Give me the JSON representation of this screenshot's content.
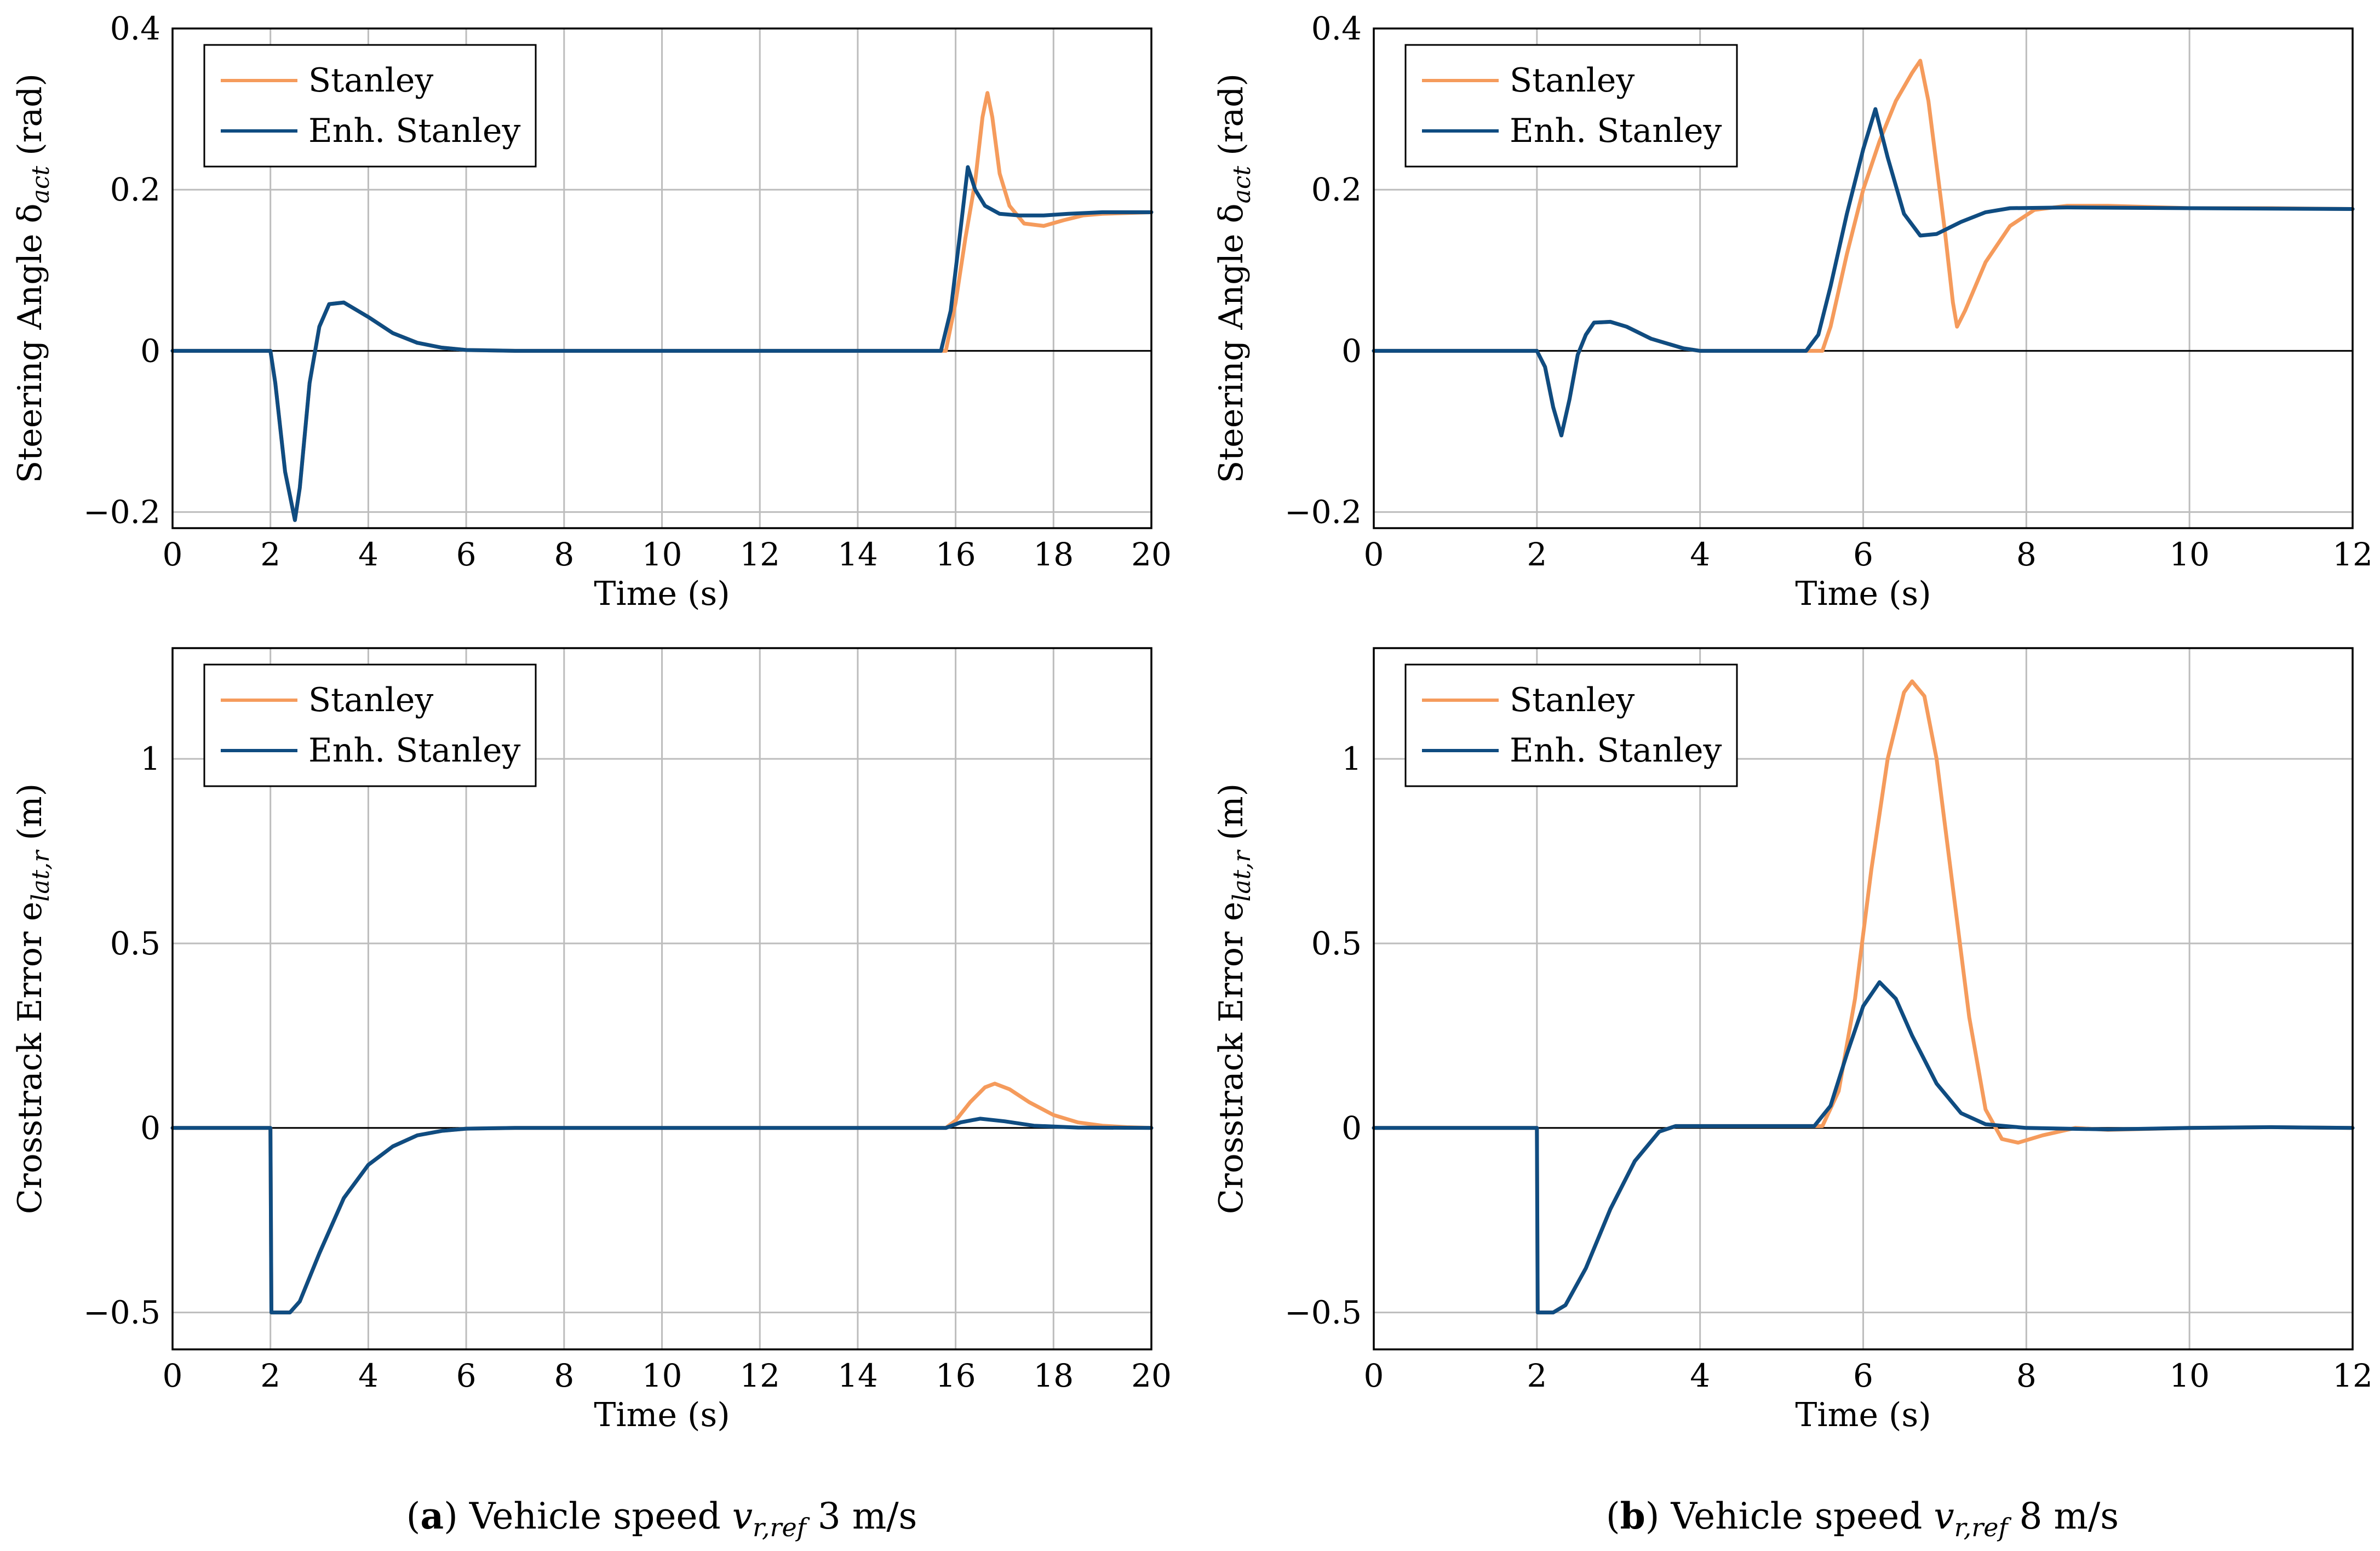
{
  "colors": {
    "stanley": "#F59B5C",
    "enh_stanley": "#0F4C81",
    "grid": "#bdbdbd"
  },
  "chart_data": [
    {
      "id": "a-steer",
      "type": "line",
      "xlabel": "Time (s)",
      "ylabel": "Steering Angle δact (rad)",
      "ylabel_main": "Steering Angle δ",
      "ylabel_sub": "act",
      "ylabel_unit": " (rad)",
      "xlim": [
        0,
        20
      ],
      "ylim": [
        -0.22,
        0.4
      ],
      "xticks": [
        0,
        2,
        4,
        6,
        8,
        10,
        12,
        14,
        16,
        18,
        20
      ],
      "yticks": [
        -0.2,
        0,
        0.2,
        0.4
      ],
      "ytick_labels": [
        "−0.2",
        "0",
        "0.2",
        "0.4"
      ],
      "legend": {
        "position": "top-left",
        "entries": [
          "Stanley",
          "Enh. Stanley"
        ]
      },
      "series": [
        {
          "name": "Stanley",
          "color_key": "stanley",
          "points": [
            [
              0,
              0
            ],
            [
              2,
              0
            ],
            [
              2.1,
              -0.04
            ],
            [
              2.3,
              -0.15
            ],
            [
              2.5,
              -0.21
            ],
            [
              2.6,
              -0.17
            ],
            [
              2.8,
              -0.04
            ],
            [
              3.0,
              0.03
            ],
            [
              3.2,
              0.058
            ],
            [
              3.5,
              0.06
            ],
            [
              4,
              0.042
            ],
            [
              4.5,
              0.022
            ],
            [
              5,
              0.01
            ],
            [
              5.5,
              0.004
            ],
            [
              6,
              0.001
            ],
            [
              7,
              0
            ],
            [
              15.8,
              0
            ],
            [
              16.0,
              0.06
            ],
            [
              16.2,
              0.14
            ],
            [
              16.4,
              0.21
            ],
            [
              16.55,
              0.29
            ],
            [
              16.65,
              0.32
            ],
            [
              16.75,
              0.29
            ],
            [
              16.9,
              0.22
            ],
            [
              17.1,
              0.18
            ],
            [
              17.4,
              0.158
            ],
            [
              17.8,
              0.155
            ],
            [
              18.2,
              0.162
            ],
            [
              18.6,
              0.168
            ],
            [
              19,
              0.17
            ],
            [
              20,
              0.172
            ]
          ]
        },
        {
          "name": "Enh. Stanley",
          "color_key": "enh_stanley",
          "points": [
            [
              0,
              0
            ],
            [
              2,
              0
            ],
            [
              2.1,
              -0.04
            ],
            [
              2.3,
              -0.15
            ],
            [
              2.5,
              -0.21
            ],
            [
              2.6,
              -0.17
            ],
            [
              2.8,
              -0.04
            ],
            [
              3.0,
              0.03
            ],
            [
              3.2,
              0.058
            ],
            [
              3.5,
              0.06
            ],
            [
              4,
              0.042
            ],
            [
              4.5,
              0.022
            ],
            [
              5,
              0.01
            ],
            [
              5.5,
              0.004
            ],
            [
              6,
              0.001
            ],
            [
              7,
              0
            ],
            [
              15.7,
              0
            ],
            [
              15.9,
              0.05
            ],
            [
              16.1,
              0.15
            ],
            [
              16.25,
              0.228
            ],
            [
              16.4,
              0.2
            ],
            [
              16.6,
              0.18
            ],
            [
              16.9,
              0.17
            ],
            [
              17.3,
              0.168
            ],
            [
              17.8,
              0.168
            ],
            [
              18.3,
              0.17
            ],
            [
              19,
              0.172
            ],
            [
              20,
              0.172
            ]
          ]
        }
      ]
    },
    {
      "id": "b-steer",
      "type": "line",
      "xlabel": "Time (s)",
      "ylabel": "Steering Angle δact (rad)",
      "ylabel_main": "Steering Angle δ",
      "ylabel_sub": "act",
      "ylabel_unit": " (rad)",
      "xlim": [
        0,
        12
      ],
      "ylim": [
        -0.22,
        0.4
      ],
      "xticks": [
        0,
        2,
        4,
        6,
        8,
        10,
        12
      ],
      "yticks": [
        -0.2,
        0,
        0.2,
        0.4
      ],
      "ytick_labels": [
        "−0.2",
        "0",
        "0.2",
        "0.4"
      ],
      "legend": {
        "position": "top-left",
        "entries": [
          "Stanley",
          "Enh. Stanley"
        ]
      },
      "series": [
        {
          "name": "Stanley",
          "color_key": "stanley",
          "points": [
            [
              0,
              0
            ],
            [
              2,
              0
            ],
            [
              2.1,
              -0.02
            ],
            [
              2.2,
              -0.07
            ],
            [
              2.3,
              -0.105
            ],
            [
              2.4,
              -0.06
            ],
            [
              2.5,
              -0.005
            ],
            [
              2.6,
              0.02
            ],
            [
              2.7,
              0.035
            ],
            [
              2.9,
              0.036
            ],
            [
              3.1,
              0.03
            ],
            [
              3.4,
              0.015
            ],
            [
              3.8,
              0.003
            ],
            [
              4,
              0
            ],
            [
              5.5,
              0
            ],
            [
              5.6,
              0.03
            ],
            [
              5.8,
              0.12
            ],
            [
              6.0,
              0.2
            ],
            [
              6.2,
              0.26
            ],
            [
              6.4,
              0.31
            ],
            [
              6.6,
              0.345
            ],
            [
              6.7,
              0.36
            ],
            [
              6.8,
              0.31
            ],
            [
              7.0,
              0.15
            ],
            [
              7.1,
              0.06
            ],
            [
              7.15,
              0.03
            ],
            [
              7.25,
              0.05
            ],
            [
              7.5,
              0.11
            ],
            [
              7.8,
              0.155
            ],
            [
              8.1,
              0.175
            ],
            [
              8.5,
              0.18
            ],
            [
              9,
              0.18
            ],
            [
              10,
              0.177
            ],
            [
              11,
              0.177
            ],
            [
              12,
              0.176
            ]
          ]
        },
        {
          "name": "Enh. Stanley",
          "color_key": "enh_stanley",
          "points": [
            [
              0,
              0
            ],
            [
              2,
              0
            ],
            [
              2.1,
              -0.02
            ],
            [
              2.2,
              -0.07
            ],
            [
              2.3,
              -0.105
            ],
            [
              2.4,
              -0.06
            ],
            [
              2.5,
              -0.005
            ],
            [
              2.6,
              0.02
            ],
            [
              2.7,
              0.035
            ],
            [
              2.9,
              0.036
            ],
            [
              3.1,
              0.03
            ],
            [
              3.4,
              0.015
            ],
            [
              3.8,
              0.003
            ],
            [
              4,
              0
            ],
            [
              5.3,
              0
            ],
            [
              5.45,
              0.02
            ],
            [
              5.6,
              0.08
            ],
            [
              5.8,
              0.17
            ],
            [
              6.0,
              0.25
            ],
            [
              6.15,
              0.3
            ],
            [
              6.3,
              0.24
            ],
            [
              6.5,
              0.17
            ],
            [
              6.7,
              0.143
            ],
            [
              6.9,
              0.145
            ],
            [
              7.2,
              0.16
            ],
            [
              7.5,
              0.172
            ],
            [
              7.8,
              0.177
            ],
            [
              8.5,
              0.178
            ],
            [
              10,
              0.177
            ],
            [
              12,
              0.176
            ]
          ]
        }
      ]
    },
    {
      "id": "a-err",
      "type": "line",
      "xlabel": "Time (s)",
      "ylabel": "Crosstrack Error elat,r (m)",
      "ylabel_main": "Crosstrack Error e",
      "ylabel_sub": "lat,r",
      "ylabel_unit": " (m)",
      "xlim": [
        0,
        20
      ],
      "ylim": [
        -0.6,
        1.3
      ],
      "xticks": [
        0,
        2,
        4,
        6,
        8,
        10,
        12,
        14,
        16,
        18,
        20
      ],
      "yticks": [
        -0.5,
        0,
        0.5,
        1
      ],
      "ytick_labels": [
        "−0.5",
        "0",
        "0.5",
        "1"
      ],
      "legend": {
        "position": "top-left",
        "entries": [
          "Stanley",
          "Enh. Stanley"
        ]
      },
      "series": [
        {
          "name": "Stanley",
          "color_key": "stanley",
          "points": [
            [
              0,
              0
            ],
            [
              2,
              0
            ],
            [
              2.02,
              -0.5
            ],
            [
              2.4,
              -0.5
            ],
            [
              2.6,
              -0.47
            ],
            [
              3,
              -0.34
            ],
            [
              3.5,
              -0.19
            ],
            [
              4,
              -0.1
            ],
            [
              4.5,
              -0.05
            ],
            [
              5,
              -0.02
            ],
            [
              5.5,
              -0.008
            ],
            [
              6,
              -0.002
            ],
            [
              7,
              0
            ],
            [
              15.8,
              0
            ],
            [
              16.0,
              0.02
            ],
            [
              16.3,
              0.07
            ],
            [
              16.6,
              0.11
            ],
            [
              16.8,
              0.12
            ],
            [
              17.1,
              0.105
            ],
            [
              17.5,
              0.07
            ],
            [
              18,
              0.035
            ],
            [
              18.5,
              0.015
            ],
            [
              19,
              0.006
            ],
            [
              19.5,
              0.002
            ],
            [
              20,
              0
            ]
          ]
        },
        {
          "name": "Enh. Stanley",
          "color_key": "enh_stanley",
          "points": [
            [
              0,
              0
            ],
            [
              2,
              0
            ],
            [
              2.02,
              -0.5
            ],
            [
              2.4,
              -0.5
            ],
            [
              2.6,
              -0.47
            ],
            [
              3,
              -0.34
            ],
            [
              3.5,
              -0.19
            ],
            [
              4,
              -0.1
            ],
            [
              4.5,
              -0.05
            ],
            [
              5,
              -0.02
            ],
            [
              5.5,
              -0.008
            ],
            [
              6,
              -0.002
            ],
            [
              7,
              0
            ],
            [
              15.8,
              0
            ],
            [
              16.1,
              0.015
            ],
            [
              16.5,
              0.025
            ],
            [
              17,
              0.018
            ],
            [
              17.6,
              0.006
            ],
            [
              18.5,
              0.001
            ],
            [
              20,
              0
            ]
          ]
        }
      ]
    },
    {
      "id": "b-err",
      "type": "line",
      "xlabel": "Time (s)",
      "ylabel": "Crosstrack Error elat,r (m)",
      "ylabel_main": "Crosstrack Error e",
      "ylabel_sub": "lat,r",
      "ylabel_unit": " (m)",
      "xlim": [
        0,
        12
      ],
      "ylim": [
        -0.6,
        1.3
      ],
      "xticks": [
        0,
        2,
        4,
        6,
        8,
        10,
        12
      ],
      "yticks": [
        -0.5,
        0,
        0.5,
        1
      ],
      "ytick_labels": [
        "−0.5",
        "0",
        "0.5",
        "1"
      ],
      "legend": {
        "position": "top-left",
        "entries": [
          "Stanley",
          "Enh. Stanley"
        ]
      },
      "series": [
        {
          "name": "Stanley",
          "color_key": "stanley",
          "points": [
            [
              0,
              0
            ],
            [
              2,
              0
            ],
            [
              2.01,
              -0.5
            ],
            [
              2.2,
              -0.5
            ],
            [
              2.35,
              -0.48
            ],
            [
              2.6,
              -0.38
            ],
            [
              2.9,
              -0.22
            ],
            [
              3.2,
              -0.09
            ],
            [
              3.5,
              -0.01
            ],
            [
              3.7,
              0.005
            ],
            [
              4,
              0.005
            ],
            [
              5.5,
              0.005
            ],
            [
              5.7,
              0.1
            ],
            [
              5.9,
              0.35
            ],
            [
              6.1,
              0.7
            ],
            [
              6.3,
              1.0
            ],
            [
              6.5,
              1.18
            ],
            [
              6.6,
              1.21
            ],
            [
              6.75,
              1.17
            ],
            [
              6.9,
              1.0
            ],
            [
              7.1,
              0.65
            ],
            [
              7.3,
              0.3
            ],
            [
              7.5,
              0.05
            ],
            [
              7.7,
              -0.03
            ],
            [
              7.9,
              -0.04
            ],
            [
              8.2,
              -0.02
            ],
            [
              8.6,
              0
            ],
            [
              9,
              -0.005
            ],
            [
              10,
              0
            ],
            [
              11,
              0.002
            ],
            [
              12,
              0
            ]
          ]
        },
        {
          "name": "Enh. Stanley",
          "color_key": "enh_stanley",
          "points": [
            [
              0,
              0
            ],
            [
              2,
              0
            ],
            [
              2.01,
              -0.5
            ],
            [
              2.2,
              -0.5
            ],
            [
              2.35,
              -0.48
            ],
            [
              2.6,
              -0.38
            ],
            [
              2.9,
              -0.22
            ],
            [
              3.2,
              -0.09
            ],
            [
              3.5,
              -0.01
            ],
            [
              3.7,
              0.005
            ],
            [
              4,
              0.005
            ],
            [
              5.4,
              0.005
            ],
            [
              5.6,
              0.06
            ],
            [
              5.8,
              0.2
            ],
            [
              6.0,
              0.33
            ],
            [
              6.2,
              0.395
            ],
            [
              6.4,
              0.35
            ],
            [
              6.6,
              0.25
            ],
            [
              6.9,
              0.12
            ],
            [
              7.2,
              0.04
            ],
            [
              7.5,
              0.01
            ],
            [
              8,
              0
            ],
            [
              9,
              -0.004
            ],
            [
              10,
              0
            ],
            [
              11,
              0.002
            ],
            [
              12,
              0
            ]
          ]
        }
      ]
    }
  ],
  "captions": {
    "a": {
      "letter": "a",
      "text_before": " Vehicle speed ",
      "var": "v",
      "var_sub": "r,ref",
      "value": " 3 m/s"
    },
    "b": {
      "letter": "b",
      "text_before": " Vehicle speed ",
      "var": "v",
      "var_sub": "r,ref",
      "value": " 8 m/s"
    }
  }
}
